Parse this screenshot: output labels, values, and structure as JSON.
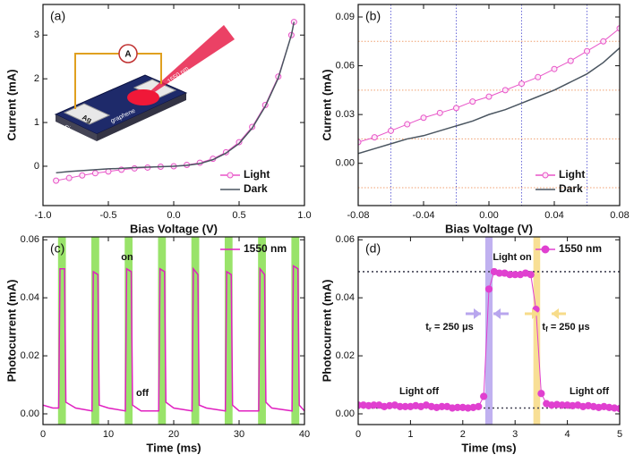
{
  "chart_data": [
    {
      "type": "line",
      "panel_label": "(a)",
      "x_label": "Bias Voltage (V)",
      "y_label": "Current (mA)",
      "xlim": [
        -1,
        1
      ],
      "ylim": [
        -0.9,
        3.7
      ],
      "xticks": [
        {
          "value": -1,
          "label": "-1.0"
        },
        -0.5,
        {
          "value": 0,
          "label": "0.0"
        },
        0.5,
        {
          "value": 1,
          "label": "1.0"
        }
      ],
      "yticks": [
        0,
        1,
        2,
        3
      ],
      "legend": "bottom-right",
      "x": [
        -0.9,
        -0.8,
        -0.7,
        -0.6,
        -0.5,
        -0.4,
        -0.3,
        -0.2,
        -0.1,
        0,
        0.1,
        0.2,
        0.3,
        0.4,
        0.5,
        0.6,
        0.7,
        0.8,
        0.9,
        0.92
      ],
      "series": [
        {
          "name": "Light",
          "color": "#e855c8",
          "marker": "open",
          "values": [
            -0.33,
            -0.27,
            -0.21,
            -0.16,
            -0.12,
            -0.08,
            -0.05,
            -0.03,
            -0.01,
            0,
            0.03,
            0.08,
            0.17,
            0.32,
            0.55,
            0.9,
            1.4,
            2.05,
            3.0,
            3.3
          ]
        },
        {
          "name": "Dark",
          "color": "#4a5560",
          "values": [
            -0.15,
            -0.12,
            -0.1,
            -0.08,
            -0.06,
            -0.05,
            -0.03,
            -0.02,
            -0.01,
            0,
            0.02,
            0.06,
            0.15,
            0.3,
            0.52,
            0.87,
            1.37,
            2.02,
            3.0,
            3.3
          ]
        }
      ],
      "inset_labels": [
        "A",
        "1550 nm",
        "Ag",
        "graphene",
        "Si"
      ]
    },
    {
      "type": "line",
      "panel_label": "(b)",
      "x_label": "Bias Voltage (V)",
      "y_label": "Current (mA)",
      "xlim": [
        -0.08,
        0.08
      ],
      "ylim": [
        -0.026,
        0.0977
      ],
      "xticks": [
        -0.08,
        -0.04,
        {
          "value": 0,
          "label": "0.00"
        },
        0.04,
        0.08
      ],
      "yticks": [
        {
          "value": 0,
          "label": "0.00"
        },
        0.03,
        0.06,
        0.09
      ],
      "x_minor_grid": [
        -0.06,
        -0.02,
        0.02,
        0.06
      ],
      "x_minor_grid_color": "#6b6bd8",
      "y_minor_grid": [
        -0.015,
        0.015,
        0.045,
        0.075
      ],
      "y_minor_grid_color": "#f0a070",
      "legend": "bottom-right",
      "x": [
        -0.08,
        -0.07,
        -0.06,
        -0.05,
        -0.04,
        -0.03,
        -0.02,
        -0.01,
        0,
        0.01,
        0.02,
        0.03,
        0.04,
        0.05,
        0.06,
        0.07,
        0.08
      ],
      "series": [
        {
          "name": "Light",
          "color": "#e855c8",
          "marker": "open",
          "values": [
            0.013,
            0.016,
            0.02,
            0.024,
            0.028,
            0.031,
            0.034,
            0.038,
            0.041,
            0.045,
            0.049,
            0.053,
            0.058,
            0.063,
            0.069,
            0.075,
            0.083
          ]
        },
        {
          "name": "Dark",
          "color": "#4a5560",
          "values": [
            0.006,
            0.009,
            0.012,
            0.015,
            0.017,
            0.02,
            0.023,
            0.026,
            0.03,
            0.033,
            0.037,
            0.041,
            0.045,
            0.05,
            0.055,
            0.062,
            0.071
          ]
        }
      ]
    },
    {
      "type": "line",
      "panel_label": "(c)",
      "x_label": "Time (ms)",
      "y_label": "Photocurrent (mA)",
      "xlim": [
        0,
        40
      ],
      "ylim": [
        -0.0037,
        0.061
      ],
      "xticks": [
        0,
        10,
        20,
        30,
        40
      ],
      "yticks": [
        {
          "value": 0,
          "label": "0.00"
        },
        0.02,
        0.04,
        0.06
      ],
      "legend": "top-right",
      "bands": [
        [
          2.3,
          3.5
        ],
        [
          7.4,
          8.6
        ],
        [
          12.5,
          13.7
        ],
        [
          17.6,
          18.8
        ],
        [
          22.7,
          23.9
        ],
        [
          27.8,
          29.0
        ],
        [
          32.9,
          34.1
        ],
        [
          38.0,
          39.2
        ]
      ],
      "band_colors": [
        "#8ee05a"
      ],
      "annotations": [
        "on",
        "off"
      ],
      "x": [
        0,
        1.5,
        2.4,
        2.6,
        3.3,
        3.5,
        5,
        7.5,
        7.7,
        8.4,
        8.6,
        10,
        12.6,
        12.8,
        13.5,
        13.7,
        15,
        17.7,
        17.9,
        18.6,
        18.8,
        20,
        22.8,
        23.0,
        23.7,
        23.9,
        25,
        27.9,
        28.1,
        28.8,
        29.0,
        30,
        33.0,
        33.2,
        33.9,
        34.1,
        35,
        38.1,
        38.3,
        39.0,
        39.2,
        40
      ],
      "series": [
        {
          "name": "1550 nm",
          "color": "#e020c0",
          "values": [
            0.003,
            0.002,
            0.002,
            0.05,
            0.05,
            0.004,
            0.002,
            0.001,
            0.049,
            0.048,
            0.003,
            0.002,
            0.001,
            0.05,
            0.049,
            0.003,
            0.001,
            0.001,
            0.05,
            0.049,
            0.004,
            0.002,
            0.001,
            0.05,
            0.048,
            0.003,
            0.002,
            0.001,
            0.049,
            0.048,
            0.003,
            0.001,
            0.001,
            0.05,
            0.048,
            0.004,
            0.002,
            0.001,
            0.051,
            0.05,
            0.003,
            0.001
          ]
        }
      ]
    },
    {
      "type": "line",
      "panel_label": "(d)",
      "x_label": "Time (ms)",
      "y_label": "Photocurrent (mA)",
      "xlim": [
        0,
        5
      ],
      "ylim": [
        -0.0037,
        0.061
      ],
      "xticks": [
        0,
        1,
        2,
        3,
        4,
        5
      ],
      "yticks": [
        {
          "value": 0,
          "label": "0.00"
        },
        0.02,
        0.04,
        0.06
      ],
      "legend": "top-right",
      "bands": [
        [
          2.43,
          2.57
        ],
        [
          3.35,
          3.48
        ]
      ],
      "band_colors": [
        "#b9a8ee",
        "#f7dc8a"
      ],
      "ref_lines": [
        0.049,
        0.002
      ],
      "annotations": [
        "Light on",
        "Light off",
        "Light off"
      ],
      "time_labels": [
        {
          "main": "t",
          "sub": "r",
          "tail": " = 250 μs"
        },
        {
          "main": "t",
          "sub": "f",
          "tail": " = 250 μs"
        }
      ],
      "x": [
        0,
        0.1,
        0.2,
        0.3,
        0.4,
        0.5,
        0.6,
        0.7,
        0.8,
        0.9,
        1,
        1.1,
        1.2,
        1.3,
        1.4,
        1.5,
        1.6,
        1.7,
        1.8,
        1.9,
        2,
        2.1,
        2.2,
        2.3,
        2.4,
        2.5,
        2.6,
        2.7,
        2.8,
        2.9,
        3,
        3.1,
        3.2,
        3.3,
        3.4,
        3.5,
        3.6,
        3.7,
        3.8,
        3.9,
        4,
        4.1,
        4.2,
        4.3,
        4.4,
        4.5,
        4.6,
        4.7,
        4.8,
        4.9,
        5
      ],
      "series": [
        {
          "name": "1550 nm",
          "color": "#e040d0",
          "marker": "filled",
          "values": [
            0.003,
            0.003,
            0.0028,
            0.003,
            0.003,
            0.0025,
            0.0028,
            0.003,
            0.0025,
            0.0025,
            0.0025,
            0.0028,
            0.0025,
            0.003,
            0.0025,
            0.0022,
            0.0025,
            0.0025,
            0.002,
            0.0022,
            0.0022,
            0.002,
            0.0022,
            0.0025,
            0.006,
            0.043,
            0.049,
            0.0485,
            0.0485,
            0.048,
            0.048,
            0.048,
            0.0485,
            0.048,
            0.036,
            0.007,
            0.0035,
            0.003,
            0.0032,
            0.003,
            0.003,
            0.0028,
            0.003,
            0.0025,
            0.0028,
            0.0025,
            0.0022,
            0.0025,
            0.0022,
            0.002,
            0.0018
          ]
        }
      ]
    }
  ]
}
